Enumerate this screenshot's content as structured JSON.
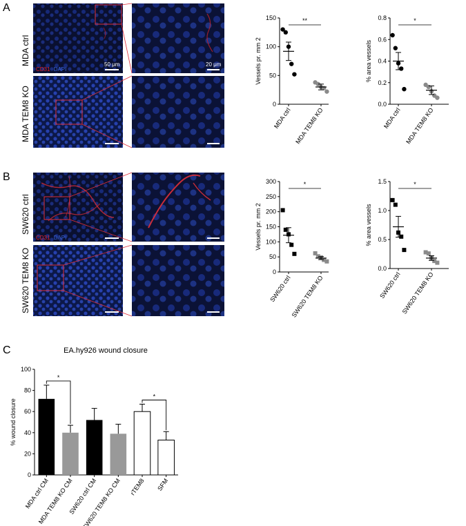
{
  "figure": {
    "panel_letters": [
      "A",
      "B",
      "C"
    ],
    "panel_a": {
      "row_labels": [
        "MDA ctrl",
        "MDA TEM8 KO"
      ],
      "stain_red": "CD31",
      "stain_blue": "DAPI",
      "scale_low": "50 μm",
      "scale_high": "20 μm"
    },
    "panel_b": {
      "row_labels": [
        "SW620 ctrl",
        "SW620 TEM8 KO"
      ],
      "stain_red": "CD31",
      "stain_blue": "DAPI"
    },
    "colors": {
      "stain_red": "#e8202a",
      "stain_blue": "#3a64d8",
      "micro_bg": "#0a1030",
      "ctrl_points": "#000000",
      "ko_points": "#8a8a8a",
      "ctrl_bar": "#000000",
      "ko_bar": "#999999",
      "open_bar": "#ffffff",
      "zoom_box": "#e0303a"
    }
  },
  "chart_data": [
    {
      "id": "A-vessels",
      "type": "scatter",
      "categories": [
        "MDA ctrl",
        "MDA TEM8 KO"
      ],
      "marker": "circle",
      "ylabel": "Vessels pr. mm 2",
      "ylim": [
        0,
        150
      ],
      "yticks": [
        0,
        50,
        100,
        150
      ],
      "points": [
        [
          130,
          125,
          100,
          70,
          52
        ],
        [
          38,
          35,
          30,
          28,
          22
        ]
      ],
      "means": [
        92,
        30
      ],
      "sems": [
        16,
        5
      ],
      "significance": "**"
    },
    {
      "id": "A-area",
      "type": "scatter",
      "categories": [
        "MDA ctrl",
        "MDA TEM8 KO"
      ],
      "marker": "circle",
      "ylabel": "% area vessels",
      "ylim": [
        0,
        0.8
      ],
      "yticks": [
        0.0,
        0.2,
        0.4,
        0.6,
        0.8
      ],
      "ytick_labels": [
        "0.0",
        "0.2",
        "0.4",
        "0.6",
        "0.8"
      ],
      "points": [
        [
          0.64,
          0.52,
          0.38,
          0.33,
          0.14
        ],
        [
          0.18,
          0.16,
          0.12,
          0.08,
          0.06
        ]
      ],
      "means": [
        0.4,
        0.13
      ],
      "sems": [
        0.08,
        0.04
      ],
      "significance": "*"
    },
    {
      "id": "B-vessels",
      "type": "scatter",
      "categories": [
        "SW620 ctrl",
        "SW620 TEM8 KO"
      ],
      "marker": "square",
      "ylabel": "Vessels pr. mm 2",
      "ylim": [
        0,
        300
      ],
      "yticks": [
        0,
        50,
        100,
        150,
        200,
        250,
        300
      ],
      "points": [
        [
          205,
          140,
          125,
          90,
          60
        ],
        [
          62,
          52,
          48,
          40,
          35
        ]
      ],
      "means": [
        122,
        46
      ],
      "sems": [
        25,
        5
      ],
      "significance": "*"
    },
    {
      "id": "B-area",
      "type": "scatter",
      "categories": [
        "SW620 ctrl",
        "SW620 TEM8 KO"
      ],
      "marker": "square",
      "ylabel": "% area vessels",
      "ylim": [
        0,
        1.5
      ],
      "yticks": [
        0.0,
        0.5,
        1.0,
        1.5
      ],
      "ytick_labels": [
        "0.0",
        "0.5",
        "1.0",
        "1.5"
      ],
      "points": [
        [
          1.18,
          1.1,
          0.62,
          0.55,
          0.32
        ],
        [
          0.28,
          0.26,
          0.18,
          0.13,
          0.1
        ]
      ],
      "means": [
        0.72,
        0.18
      ],
      "sems": [
        0.18,
        0.04
      ],
      "significance": "*"
    },
    {
      "id": "C-wound",
      "type": "bar",
      "title": "EA.hy926 wound closure",
      "categories": [
        "MDA ctrl CM",
        "MDA TEM8 KO CM",
        "SW620 ctrl CM",
        "SW620 TEM8 KO CM",
        "rTEM8",
        "SFM"
      ],
      "values": [
        72,
        40,
        52,
        39,
        60,
        33
      ],
      "errors": [
        13,
        7,
        11,
        9,
        7,
        8
      ],
      "bar_fill": [
        "ctrl",
        "ko",
        "ctrl",
        "ko",
        "open",
        "open"
      ],
      "ylabel": "% wound closure",
      "ylim": [
        0,
        100
      ],
      "yticks": [
        0,
        20,
        40,
        60,
        80,
        100
      ],
      "brackets": [
        {
          "from": 0,
          "to": 1,
          "label": "*"
        },
        {
          "from": 4,
          "to": 5,
          "label": "*"
        }
      ]
    }
  ]
}
